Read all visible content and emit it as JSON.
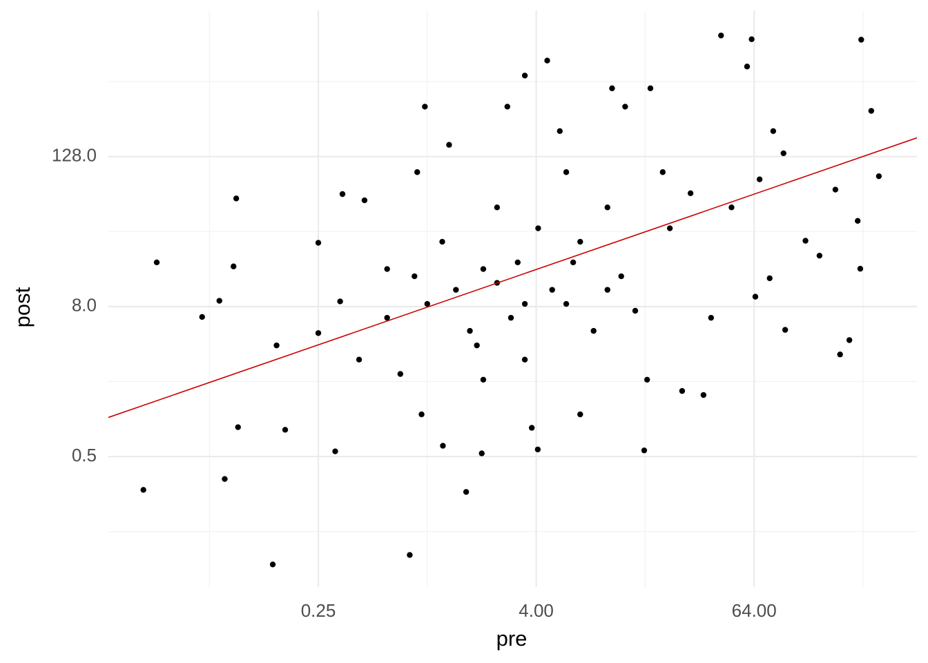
{
  "chart_data": {
    "type": "scatter",
    "log_x": 2,
    "log_y": 2,
    "grid": true,
    "color": "#000000",
    "x_label": "pre",
    "y_label": "post",
    "xlim": [
      0.0173,
      508
    ],
    "ylim": [
      0.0448,
      1910
    ],
    "xticks": [
      {
        "value": 0.25,
        "label": "0.25"
      },
      {
        "value": 4,
        "label": "4.00"
      },
      {
        "value": 64,
        "label": "64.00"
      }
    ],
    "yticks": [
      {
        "value": 0.5,
        "label": "0.5"
      },
      {
        "value": 8,
        "label": "8.0"
      },
      {
        "value": 128,
        "label": "128.0"
      }
    ],
    "x": [
      0.027,
      0.032,
      0.057,
      0.071,
      0.076,
      0.088,
      0.085,
      0.09,
      0.14,
      0.147,
      0.164,
      0.25,
      0.25,
      0.31,
      0.34,
      0.45,
      0.33,
      0.42,
      0.6,
      0.8,
      0.97,
      0.88,
      0.85,
      0.71,
      0.93,
      1.22,
      1.64,
      2.0,
      1.32,
      1.21,
      1.44,
      1.72,
      2.04,
      2.43,
      2.77,
      3.46,
      4.6,
      3.16,
      2.9,
      3.46,
      4.08,
      3.78,
      4.1,
      4.9,
      5.4,
      5.86,
      6.4,
      7.0,
      8.3,
      9.9,
      10.5,
      12.4,
      11.8,
      14.1,
      15.8,
      16.4,
      17.1,
      20,
      21.9,
      25.6,
      28.5,
      33.6,
      37,
      42,
      62,
      58.5,
      48,
      65,
      68.6,
      78,
      95,
      81.6,
      93,
      123,
      147,
      180,
      191,
      215,
      250,
      284,
      313,
      247,
      239,
      9.9,
      2.43,
      7.0,
      1.0,
      2.04,
      3.46,
      5.86,
      0.6,
      1.88
    ],
    "y": [
      0.27,
      18.1,
      6.6,
      8.9,
      0.33,
      59,
      16.8,
      0.86,
      0.068,
      3.9,
      0.82,
      26,
      4.9,
      0.55,
      64,
      57,
      8.8,
      3.0,
      6.5,
      0.081,
      322,
      96,
      14,
      2.3,
      1.09,
      0.61,
      0.26,
      0.53,
      159,
      26.5,
      10.9,
      5.1,
      2.07,
      50,
      322,
      572,
      755,
      18.1,
      6.5,
      3.0,
      0.57,
      0.85,
      34,
      10.9,
      205,
      96,
      18.1,
      1.09,
      5.1,
      50,
      452,
      322,
      14,
      7.4,
      0.56,
      2.07,
      452,
      96,
      34,
      1.68,
      65,
      1.56,
      6.5,
      1200,
      1120,
      676,
      50,
      9.6,
      84,
      13.5,
      5.2,
      205,
      136,
      27,
      20.5,
      69.5,
      3.3,
      4.3,
      1110,
      298,
      89,
      16.1,
      39,
      10.9,
      12.4,
      26.5,
      8.4,
      16,
      8.4,
      8.4,
      16,
      3.9
    ],
    "trend": {
      "color": "#cc0000",
      "x": [
        0.0173,
        508
      ],
      "y": [
        1.03,
        181
      ]
    }
  }
}
